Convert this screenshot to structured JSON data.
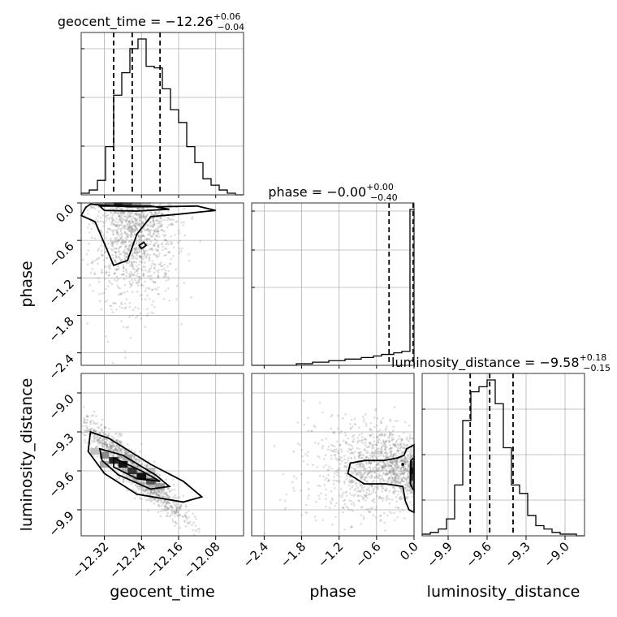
{
  "chart_data": {
    "type": "corner",
    "parameters": [
      {
        "name": "geocent_time",
        "range": [
          -12.37,
          -12.02
        ],
        "ticks": [
          "−12.32",
          "−12.24",
          "−12.16",
          "−12.08"
        ],
        "tick_values": [
          -12.32,
          -12.24,
          -12.16,
          -12.08
        ],
        "median": -12.26,
        "quantiles": [
          -12.3,
          -12.26,
          -12.2
        ],
        "title": {
          "prefix": "geocent_time = −12.26",
          "plus": "+0.06",
          "minus": "−0.04"
        },
        "hist_counts": [
          1,
          3,
          9,
          30,
          62,
          76,
          91,
          97,
          80,
          79,
          66,
          53,
          45,
          30,
          20,
          10,
          6,
          3,
          1,
          0
        ]
      },
      {
        "name": "phase",
        "range": [
          -2.6,
          0.0
        ],
        "ticks": [
          "−2.4",
          "−1.8",
          "−1.2",
          "−0.6",
          "0.0"
        ],
        "tick_values": [
          -2.4,
          -1.8,
          -1.2,
          -0.6,
          0.0
        ],
        "median": 0.0,
        "quantiles": [
          -0.4,
          -0.001,
          0.0
        ],
        "title": {
          "prefix": "phase = −0.00",
          "plus": "+0.00",
          "minus": "−0.40"
        },
        "hist_counts": [
          0,
          0,
          0,
          0,
          0,
          0,
          0,
          0,
          0,
          0,
          0,
          1,
          1,
          1,
          1,
          2,
          2,
          2,
          2,
          3,
          3,
          3,
          3,
          4,
          4,
          4,
          4,
          5,
          5,
          5,
          6,
          6,
          7,
          7,
          7,
          8,
          8,
          9,
          9,
          100
        ]
      },
      {
        "name": "luminosity_distance",
        "range": [
          -10.1,
          -8.85
        ],
        "ticks": [
          "−9.9",
          "−9.6",
          "−9.3",
          "−9.0"
        ],
        "tick_values": [
          -9.9,
          -9.6,
          -9.3,
          -9.0
        ],
        "median": -9.58,
        "quantiles": [
          -9.73,
          -9.58,
          -9.4
        ],
        "title": {
          "prefix": "luminosity_distance = −9.58",
          "plus": "+0.18",
          "minus": "−0.15"
        },
        "hist_counts": [
          1,
          2,
          4,
          10,
          30,
          68,
          85,
          88,
          92,
          78,
          52,
          30,
          25,
          12,
          6,
          4,
          2,
          1,
          1,
          0
        ]
      }
    ],
    "contours": {
      "phase_vs_geocent_time": [
        [
          [
            -12.35,
            -0.02
          ],
          [
            -12.27,
            -0.06
          ],
          [
            -12.2,
            -0.06
          ],
          [
            -12.12,
            -0.05
          ],
          [
            -12.08,
            -0.12
          ],
          [
            -12.16,
            -0.18
          ],
          [
            -12.22,
            -0.22
          ],
          [
            -12.25,
            -0.5
          ],
          [
            -12.27,
            -0.92
          ],
          [
            -12.3,
            -1.0
          ],
          [
            -12.32,
            -0.65
          ],
          [
            -12.34,
            -0.3
          ],
          [
            -12.37,
            -0.2
          ],
          [
            -12.36,
            -0.07
          ]
        ],
        [
          [
            -12.33,
            -0.05
          ],
          [
            -12.22,
            -0.05
          ],
          [
            -12.18,
            -0.1
          ],
          [
            -12.25,
            -0.13
          ],
          [
            -12.32,
            -0.12
          ]
        ],
        [
          [
            -12.245,
            -0.68
          ],
          [
            -12.235,
            -0.63
          ],
          [
            -12.23,
            -0.68
          ],
          [
            -12.24,
            -0.73
          ]
        ]
      ],
      "luminosity_distance_vs_geocent_time": [
        [
          [
            -12.35,
            -9.3
          ],
          [
            -12.31,
            -9.35
          ],
          [
            -12.22,
            -9.55
          ],
          [
            -12.15,
            -9.68
          ],
          [
            -12.11,
            -9.8
          ],
          [
            -12.15,
            -9.84
          ],
          [
            -12.25,
            -9.78
          ],
          [
            -12.32,
            -9.62
          ],
          [
            -12.355,
            -9.45
          ]
        ],
        [
          [
            -12.33,
            -9.43
          ],
          [
            -12.28,
            -9.48
          ],
          [
            -12.21,
            -9.63
          ],
          [
            -12.18,
            -9.72
          ],
          [
            -12.22,
            -9.74
          ],
          [
            -12.29,
            -9.63
          ],
          [
            -12.325,
            -9.52
          ]
        ],
        [
          [
            -12.3,
            -9.5
          ],
          [
            -12.24,
            -9.6
          ],
          [
            -12.2,
            -9.68
          ],
          [
            -12.25,
            -9.66
          ],
          [
            -12.3,
            -9.57
          ]
        ]
      ],
      "luminosity_distance_vs_phase": [
        [
          [
            0.0,
            -9.4
          ],
          [
            -0.12,
            -9.43
          ],
          [
            -0.16,
            -9.48
          ],
          [
            -0.26,
            -9.5
          ],
          [
            -0.48,
            -9.52
          ],
          [
            -0.78,
            -9.52
          ],
          [
            -1.02,
            -9.54
          ],
          [
            -1.06,
            -9.62
          ],
          [
            -0.8,
            -9.7
          ],
          [
            -0.45,
            -9.7
          ],
          [
            -0.18,
            -9.72
          ],
          [
            -0.14,
            -9.83
          ],
          [
            -0.08,
            -9.9
          ],
          [
            0.0,
            -9.92
          ]
        ],
        [
          [
            0.0,
            -9.5
          ],
          [
            -0.05,
            -9.52
          ],
          [
            -0.06,
            -9.7
          ],
          [
            -0.02,
            -9.74
          ],
          [
            0.0,
            -9.75
          ]
        ]
      ]
    },
    "axis_labels": {
      "x": [
        "geocent_time",
        "phase",
        "luminosity_distance"
      ],
      "y": [
        "phase",
        "luminosity_distance"
      ]
    },
    "grid": true
  }
}
